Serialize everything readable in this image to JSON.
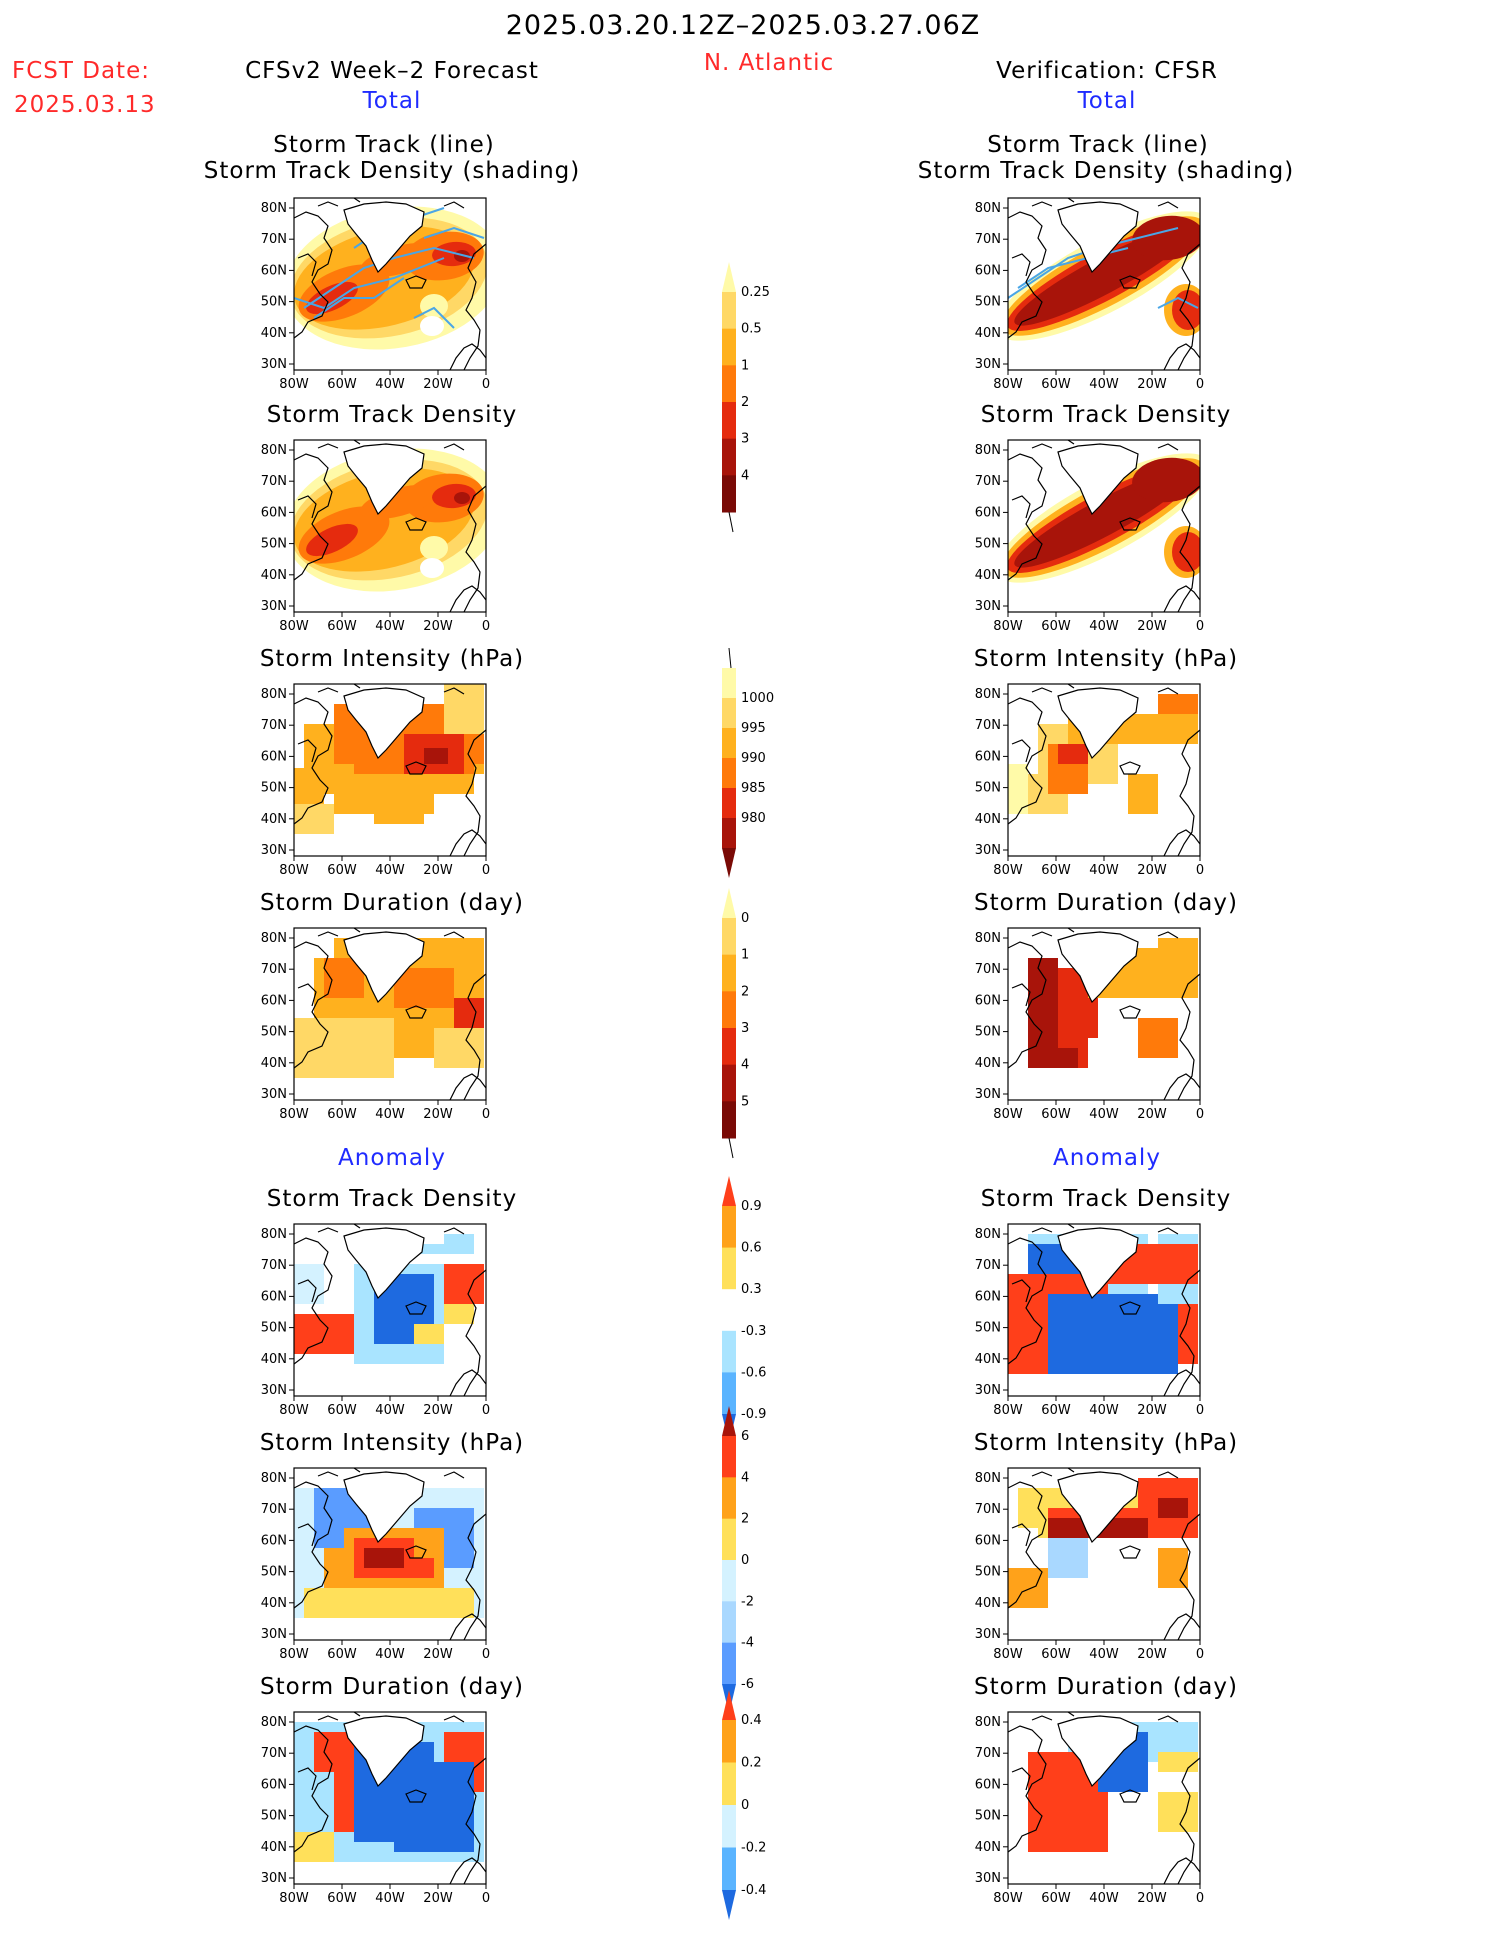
{
  "header": {
    "period": "2025.03.20.12Z–2025.03.27.06Z",
    "fcst_label": "FCST Date:",
    "fcst_date": "2025.03.13",
    "model_title": "CFSv2 Week–2 Forecast",
    "region": "N. Atlantic",
    "verif_title": "Verification: CFSR",
    "total_left": "Total",
    "total_right": "Total",
    "anomaly_left": "Anomaly",
    "anomaly_right": "Anomaly"
  },
  "titles": {
    "track_line": "Storm Track (line)",
    "track_shading": "Storm Track Density (shading)",
    "density": "Storm Track Density",
    "intensity": "Storm Intensity (hPa)",
    "duration": "Storm Duration (day)"
  },
  "axes": {
    "x_ticks": [
      "80W",
      "60W",
      "40W",
      "20W",
      "0"
    ],
    "y_ticks": [
      "80N",
      "70N",
      "60N",
      "50N",
      "40N",
      "30N"
    ]
  },
  "colorbars": {
    "density_total": {
      "levels": [
        "0.25",
        "0.5",
        "1",
        "2",
        "3",
        "4"
      ],
      "colors": [
        "#fffaa8",
        "#ffd866",
        "#ffb11e",
        "#ff7a0a",
        "#e52b0e",
        "#a8140a",
        "#7a0a06"
      ]
    },
    "intensity_total": {
      "levels": [
        "1000",
        "995",
        "990",
        "985",
        "980"
      ],
      "colors": [
        "#fffaa8",
        "#ffd866",
        "#ffb11e",
        "#ff7a0a",
        "#e52b0e",
        "#a8140a",
        "#7a0a06"
      ]
    },
    "duration_total": {
      "levels": [
        "0",
        "1",
        "2",
        "3",
        "4",
        "5"
      ],
      "colors": [
        "#fffaa8",
        "#ffd866",
        "#ffb11e",
        "#ff7a0a",
        "#e52b0e",
        "#a8140a",
        "#7a0a06"
      ]
    },
    "density_anom": {
      "levels": [
        "0.9",
        "0.6",
        "0.3",
        "-0.3",
        "-0.6",
        "-0.9"
      ],
      "colors": [
        "#ff3f1a",
        "#ffa21a",
        "#ffe05a",
        "#ffffff",
        "#a9e4ff",
        "#5ab4ff",
        "#1e6ae0"
      ]
    },
    "intensity_anom": {
      "levels": [
        "6",
        "4",
        "2",
        "0",
        "-2",
        "-4",
        "-6"
      ],
      "colors": [
        "#a8140a",
        "#ff3f1a",
        "#ffa21a",
        "#ffe05a",
        "#d4f2ff",
        "#a9d8ff",
        "#5a9cff",
        "#1e6ae0"
      ]
    },
    "duration_anom": {
      "levels": [
        "0.4",
        "0.2",
        "0",
        "-0.2",
        "-0.4"
      ],
      "colors": [
        "#ff3f1a",
        "#ffa21a",
        "#ffe05a",
        "#d4f2ff",
        "#5ab4ff",
        "#1e6ae0"
      ]
    }
  }
}
